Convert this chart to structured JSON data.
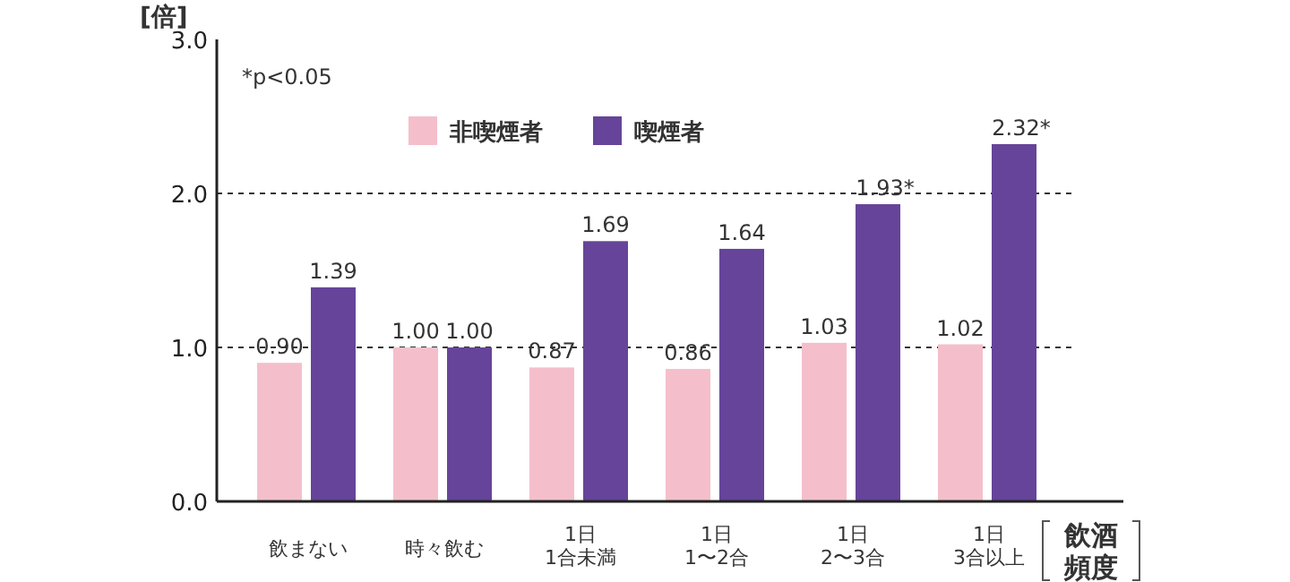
{
  "chart_data": {
    "type": "bar",
    "ylabel": "[倍]",
    "xlabel": "飲酒頻度",
    "categories": [
      "飲まない",
      "時々飲む",
      "1日\n1合未満",
      "1日\n1〜2合",
      "1日\n2〜3合",
      "1日\n3合以上"
    ],
    "series": [
      {
        "name": "非喫煙者",
        "color": "#f4bfcb",
        "values": [
          0.9,
          1.0,
          0.87,
          0.86,
          1.03,
          1.02
        ],
        "value_labels": [
          "0.90",
          "1.00",
          "0.87",
          "0.86",
          "1.03",
          "1.02"
        ]
      },
      {
        "name": "喫煙者",
        "color": "#664499",
        "values": [
          1.39,
          1.0,
          1.69,
          1.64,
          1.93,
          2.32
        ],
        "value_labels": [
          "1.39",
          "1.00",
          "1.69",
          "1.64",
          "1.93*",
          "2.32*"
        ]
      }
    ],
    "ylim": [
      0,
      3
    ],
    "yticks": [
      {
        "value": 0,
        "label": "0.0"
      },
      {
        "value": 1,
        "label": "1.0"
      },
      {
        "value": 2,
        "label": "2.0"
      },
      {
        "value": 3,
        "label": "3.0"
      }
    ],
    "ref_lines": [
      {
        "axis": "y",
        "value": 1,
        "line_style": "dashed",
        "color": "#333333"
      },
      {
        "axis": "y",
        "value": 2,
        "line_style": "dashed",
        "color": "#333333"
      }
    ],
    "legend": "top",
    "annotations": [
      "*p<0.05"
    ]
  }
}
